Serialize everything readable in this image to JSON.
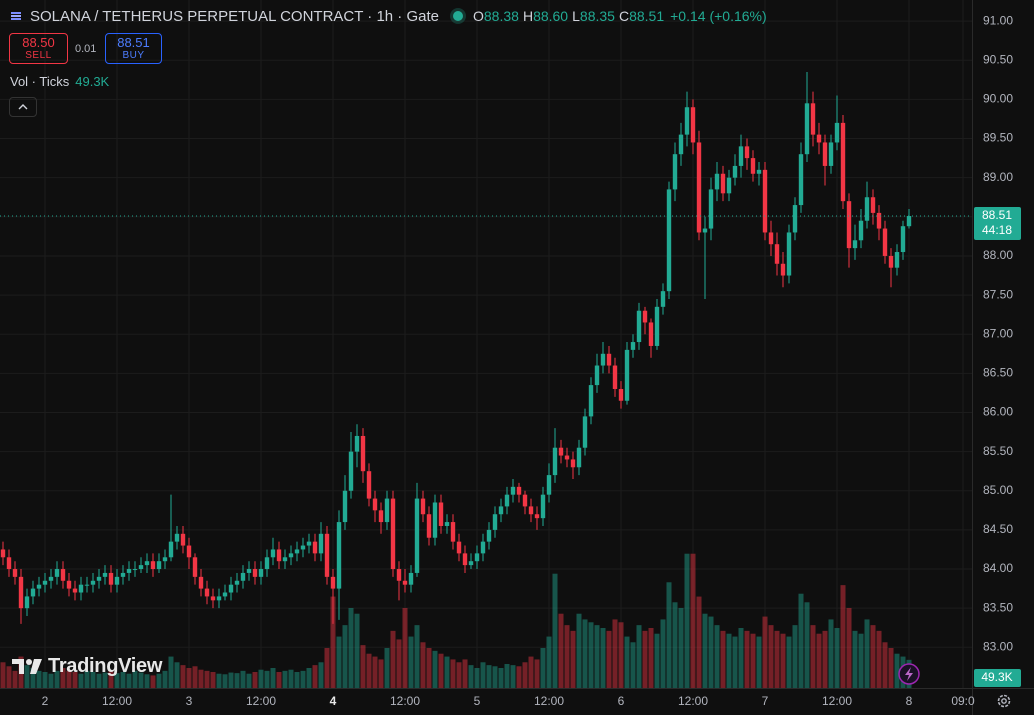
{
  "header": {
    "title": "SOLANA / TETHERUS PERPETUAL CONTRACT · 1h · Gate",
    "o_key": "O",
    "o_val": "88.38",
    "h_key": "H",
    "h_val": "88.60",
    "l_key": "L",
    "l_val": "88.35",
    "c_key": "C",
    "c_val": "88.51",
    "change": "+0.14 (+0.16%)"
  },
  "order_panel": {
    "sell_price": "88.50",
    "sell_label": "SELL",
    "spread": "0.01",
    "buy_price": "88.51",
    "buy_label": "BUY"
  },
  "indicator": {
    "name": "Vol · Ticks",
    "value": "49.3K"
  },
  "countdown": "44:18",
  "branding": "TradingView",
  "chart_data": {
    "type": "candlestick",
    "up_color": "#22ab94",
    "down_color": "#f23645",
    "grid": true,
    "xlim": [
      -0.5,
      161.5
    ],
    "ylim": [
      82.48,
      91.27
    ],
    "volume_lim": [
      0,
      280000
    ],
    "xticks": [
      {
        "value": 7,
        "label": "2"
      },
      {
        "value": 19,
        "label": "12:00"
      },
      {
        "value": 31,
        "label": "3"
      },
      {
        "value": 43,
        "label": "12:00"
      },
      {
        "value": 55,
        "label": "4",
        "bold": true
      },
      {
        "value": 67,
        "label": "12:00"
      },
      {
        "value": 79,
        "label": "5"
      },
      {
        "value": 91,
        "label": "12:00"
      },
      {
        "value": 103,
        "label": "6"
      },
      {
        "value": 115,
        "label": "12:00"
      },
      {
        "value": 127,
        "label": "7"
      },
      {
        "value": 139,
        "label": "12:00"
      },
      {
        "value": 151,
        "label": "8"
      },
      {
        "value": 160,
        "label": "09:0"
      }
    ],
    "yticks": [
      {
        "value": 83,
        "label": "83.00"
      },
      {
        "value": 83.5,
        "label": "83.50"
      },
      {
        "value": 84,
        "label": "84.00"
      },
      {
        "value": 84.5,
        "label": "84.50"
      },
      {
        "value": 85,
        "label": "85.00"
      },
      {
        "value": 85.5,
        "label": "85.50"
      },
      {
        "value": 86,
        "label": "86.00"
      },
      {
        "value": 86.5,
        "label": "86.50"
      },
      {
        "value": 87,
        "label": "87.00"
      },
      {
        "value": 87.5,
        "label": "87.50"
      },
      {
        "value": 88,
        "label": "88.00"
      },
      {
        "value": 88.5,
        "label": "88.50"
      },
      {
        "value": 89,
        "label": "89.00"
      },
      {
        "value": 89.5,
        "label": "89.50"
      },
      {
        "value": 90,
        "label": "90.00"
      },
      {
        "value": 90.5,
        "label": "90.50"
      },
      {
        "value": 91,
        "label": "91.00"
      }
    ],
    "x": [
      0,
      1,
      2,
      3,
      4,
      5,
      6,
      7,
      8,
      9,
      10,
      11,
      12,
      13,
      14,
      15,
      16,
      17,
      18,
      19,
      20,
      21,
      22,
      23,
      24,
      25,
      26,
      27,
      28,
      29,
      30,
      31,
      32,
      33,
      34,
      35,
      36,
      37,
      38,
      39,
      40,
      41,
      42,
      43,
      44,
      45,
      46,
      47,
      48,
      49,
      50,
      51,
      52,
      53,
      54,
      55,
      56,
      57,
      58,
      59,
      60,
      61,
      62,
      63,
      64,
      65,
      66,
      67,
      68,
      69,
      70,
      71,
      72,
      73,
      74,
      75,
      76,
      77,
      78,
      79,
      80,
      81,
      82,
      83,
      84,
      85,
      86,
      87,
      88,
      89,
      90,
      91,
      92,
      93,
      94,
      95,
      96,
      97,
      98,
      99,
      100,
      101,
      102,
      103,
      104,
      105,
      106,
      107,
      108,
      109,
      110,
      111,
      112,
      113,
      114,
      115,
      116,
      117,
      118,
      119,
      120,
      121,
      122,
      123,
      124,
      125,
      126,
      127,
      128,
      129,
      130,
      131,
      132,
      133,
      134,
      135,
      136,
      137,
      138,
      139,
      140,
      141,
      142,
      143,
      144,
      145,
      146,
      147,
      148,
      149,
      150,
      151
    ],
    "open": [
      84.25,
      84.15,
      84.0,
      83.9,
      83.5,
      83.65,
      83.75,
      83.8,
      83.85,
      83.9,
      84.0,
      83.85,
      83.75,
      83.7,
      83.8,
      83.8,
      83.85,
      83.9,
      83.95,
      83.8,
      83.9,
      83.95,
      84.0,
      84.0,
      84.05,
      84.1,
      84.0,
      84.1,
      84.15,
      84.35,
      84.45,
      84.3,
      84.15,
      83.9,
      83.75,
      83.65,
      83.6,
      83.65,
      83.7,
      83.8,
      83.85,
      83.95,
      84.0,
      83.9,
      84.0,
      84.15,
      84.25,
      84.1,
      84.15,
      84.2,
      84.25,
      84.3,
      84.35,
      84.2,
      84.45,
      83.9,
      83.75,
      84.6,
      85.0,
      85.5,
      85.7,
      85.25,
      84.9,
      84.75,
      84.6,
      84.9,
      84.0,
      83.85,
      83.8,
      83.95,
      84.9,
      84.7,
      84.4,
      84.85,
      84.55,
      84.6,
      84.35,
      84.2,
      84.05,
      84.1,
      84.2,
      84.35,
      84.5,
      84.7,
      84.8,
      84.95,
      85.05,
      84.95,
      84.8,
      84.7,
      84.65,
      84.95,
      85.2,
      85.55,
      85.45,
      85.4,
      85.3,
      85.55,
      85.95,
      86.35,
      86.6,
      86.75,
      86.6,
      86.3,
      86.15,
      86.8,
      86.9,
      87.3,
      87.15,
      86.85,
      87.35,
      87.55,
      88.85,
      89.3,
      89.55,
      89.9,
      89.45,
      88.3,
      88.35,
      88.85,
      89.05,
      88.8,
      89.0,
      89.15,
      89.4,
      89.25,
      89.05,
      89.1,
      88.3,
      88.15,
      87.9,
      87.75,
      88.3,
      88.65,
      89.3,
      89.95,
      89.55,
      89.45,
      89.15,
      89.45,
      89.7,
      88.7,
      88.1,
      88.2,
      88.45,
      88.75,
      88.55,
      88.35,
      88.0,
      87.85,
      88.05,
      88.38
    ],
    "high": [
      84.35,
      84.25,
      84.1,
      84.0,
      83.75,
      83.85,
      83.9,
      83.95,
      84.0,
      84.1,
      84.1,
      83.95,
      83.85,
      83.9,
      83.9,
      83.95,
      84.0,
      84.05,
      84.05,
      84.0,
      84.05,
      84.1,
      84.1,
      84.15,
      84.2,
      84.2,
      84.2,
      84.25,
      84.95,
      84.55,
      84.55,
      84.4,
      84.2,
      84.0,
      83.85,
      83.75,
      83.75,
      83.8,
      83.9,
      83.95,
      84.05,
      84.1,
      84.1,
      84.1,
      84.25,
      84.4,
      84.35,
      84.25,
      84.3,
      84.35,
      84.4,
      84.45,
      84.45,
      84.6,
      84.55,
      84.0,
      84.75,
      85.2,
      85.75,
      85.85,
      85.8,
      85.35,
      85.0,
      84.85,
      85.0,
      85.0,
      84.1,
      84.0,
      84.05,
      85.1,
      85.0,
      84.8,
      84.95,
      84.95,
      84.7,
      84.7,
      84.45,
      84.3,
      84.2,
      84.3,
      84.45,
      84.6,
      84.8,
      84.9,
      85.05,
      85.15,
      85.1,
      85.0,
      84.9,
      84.8,
      85.05,
      85.35,
      85.8,
      85.65,
      85.55,
      85.5,
      85.65,
      86.05,
      86.45,
      86.75,
      86.9,
      86.85,
      86.7,
      86.4,
      86.9,
      87.0,
      87.4,
      87.35,
      87.2,
      87.45,
      87.65,
      88.95,
      89.45,
      89.7,
      90.1,
      90.0,
      89.6,
      88.5,
      89.0,
      89.2,
      89.15,
      89.1,
      89.3,
      89.55,
      89.5,
      89.35,
      89.2,
      89.2,
      88.45,
      88.3,
      88.05,
      88.4,
      88.75,
      89.45,
      90.35,
      90.1,
      89.7,
      89.55,
      89.55,
      90.05,
      89.8,
      88.8,
      88.4,
      88.6,
      88.95,
      88.85,
      88.65,
      88.45,
      88.1,
      88.15,
      88.45,
      88.6
    ],
    "low": [
      84.05,
      83.9,
      83.8,
      83.3,
      83.4,
      83.55,
      83.65,
      83.7,
      83.75,
      83.8,
      83.75,
      83.65,
      83.6,
      83.6,
      83.7,
      83.7,
      83.75,
      83.8,
      83.7,
      83.7,
      83.8,
      83.85,
      83.9,
      83.95,
      83.95,
      83.9,
      83.95,
      84.0,
      84.1,
      84.25,
      84.2,
      84.0,
      83.8,
      83.65,
      83.55,
      83.5,
      83.5,
      83.6,
      83.6,
      83.7,
      83.75,
      83.85,
      83.8,
      83.8,
      83.9,
      84.05,
      84.0,
      84.0,
      84.05,
      84.1,
      84.15,
      84.2,
      84.1,
      84.1,
      83.8,
      83.3,
      83.35,
      84.5,
      84.9,
      85.3,
      85.1,
      84.8,
      84.6,
      84.45,
      84.5,
      83.9,
      83.6,
      83.7,
      83.7,
      83.9,
      84.6,
      84.3,
      84.3,
      84.45,
      84.45,
      84.25,
      84.1,
      83.95,
      84.0,
      84.0,
      84.1,
      84.25,
      84.4,
      84.6,
      84.7,
      84.85,
      84.85,
      84.7,
      84.6,
      84.5,
      84.55,
      84.85,
      85.1,
      85.35,
      85.3,
      85.15,
      85.2,
      85.45,
      85.85,
      86.25,
      86.5,
      86.5,
      86.2,
      86.05,
      86.1,
      86.7,
      86.8,
      87.0,
      86.7,
      86.8,
      87.25,
      87.45,
      88.7,
      89.15,
      89.4,
      89.3,
      88.2,
      87.45,
      88.2,
      88.7,
      88.7,
      88.7,
      88.9,
      89.0,
      89.1,
      88.95,
      88.9,
      88.2,
      88.0,
      87.75,
      87.6,
      87.65,
      88.2,
      88.55,
      89.2,
      89.4,
      89.3,
      88.9,
      89.05,
      89.35,
      88.6,
      87.85,
      87.95,
      88.1,
      88.35,
      88.4,
      88.2,
      87.9,
      87.6,
      87.75,
      87.95,
      88.35
    ],
    "close": [
      84.15,
      84.0,
      83.9,
      83.5,
      83.65,
      83.75,
      83.8,
      83.85,
      83.9,
      84.0,
      83.85,
      83.75,
      83.7,
      83.8,
      83.8,
      83.85,
      83.9,
      83.95,
      83.8,
      83.9,
      83.95,
      84.0,
      84.0,
      84.05,
      84.1,
      84.0,
      84.1,
      84.15,
      84.35,
      84.45,
      84.3,
      84.15,
      83.9,
      83.75,
      83.65,
      83.6,
      83.65,
      83.7,
      83.8,
      83.85,
      83.95,
      84.0,
      83.9,
      84.0,
      84.15,
      84.25,
      84.1,
      84.15,
      84.2,
      84.25,
      84.3,
      84.35,
      84.2,
      84.45,
      83.9,
      83.75,
      84.6,
      85.0,
      85.5,
      85.7,
      85.25,
      84.9,
      84.75,
      84.6,
      84.9,
      84.0,
      83.85,
      83.8,
      83.95,
      84.9,
      84.7,
      84.4,
      84.85,
      84.55,
      84.6,
      84.35,
      84.2,
      84.05,
      84.1,
      84.2,
      84.35,
      84.5,
      84.7,
      84.8,
      84.95,
      85.05,
      84.95,
      84.8,
      84.7,
      84.65,
      84.95,
      85.2,
      85.55,
      85.45,
      85.4,
      85.3,
      85.55,
      85.95,
      86.35,
      86.6,
      86.75,
      86.6,
      86.3,
      86.15,
      86.8,
      86.9,
      87.3,
      87.15,
      86.85,
      87.35,
      87.55,
      88.85,
      89.3,
      89.55,
      89.9,
      89.45,
      88.3,
      88.35,
      88.85,
      89.05,
      88.8,
      89.0,
      89.15,
      89.4,
      89.25,
      89.05,
      89.1,
      88.3,
      88.15,
      87.9,
      87.75,
      88.3,
      88.65,
      89.3,
      89.95,
      89.55,
      89.45,
      89.15,
      89.45,
      89.7,
      88.7,
      88.1,
      88.2,
      88.45,
      88.75,
      88.55,
      88.35,
      88.0,
      87.85,
      88.05,
      88.38,
      88.51
    ],
    "volume": [
      45000,
      38000,
      30000,
      55000,
      40000,
      35000,
      30000,
      28000,
      25000,
      30000,
      35000,
      30000,
      28000,
      25000,
      30000,
      28000,
      25000,
      27000,
      30000,
      26000,
      28000,
      25000,
      30000,
      27000,
      24000,
      22000,
      25000,
      30000,
      55000,
      45000,
      40000,
      35000,
      38000,
      32000,
      30000,
      28000,
      25000,
      24000,
      27000,
      26000,
      30000,
      25000,
      28000,
      32000,
      30000,
      35000,
      28000,
      30000,
      32000,
      28000,
      30000,
      35000,
      40000,
      45000,
      70000,
      160000,
      90000,
      110000,
      140000,
      130000,
      75000,
      60000,
      55000,
      50000,
      70000,
      100000,
      85000,
      140000,
      90000,
      110000,
      80000,
      70000,
      65000,
      60000,
      55000,
      50000,
      45000,
      50000,
      40000,
      35000,
      45000,
      40000,
      38000,
      35000,
      42000,
      40000,
      38000,
      45000,
      55000,
      50000,
      70000,
      90000,
      200000,
      130000,
      110000,
      100000,
      130000,
      120000,
      115000,
      110000,
      105000,
      100000,
      120000,
      115000,
      90000,
      80000,
      110000,
      100000,
      105000,
      95000,
      120000,
      185000,
      150000,
      140000,
      235000,
      235000,
      160000,
      130000,
      125000,
      110000,
      100000,
      95000,
      90000,
      105000,
      100000,
      95000,
      90000,
      125000,
      110000,
      100000,
      95000,
      90000,
      110000,
      165000,
      150000,
      110000,
      95000,
      100000,
      120000,
      105000,
      180000,
      140000,
      100000,
      95000,
      120000,
      110000,
      100000,
      80000,
      70000,
      60000,
      55000,
      49300
    ],
    "volume_last_label": "49.3K"
  }
}
